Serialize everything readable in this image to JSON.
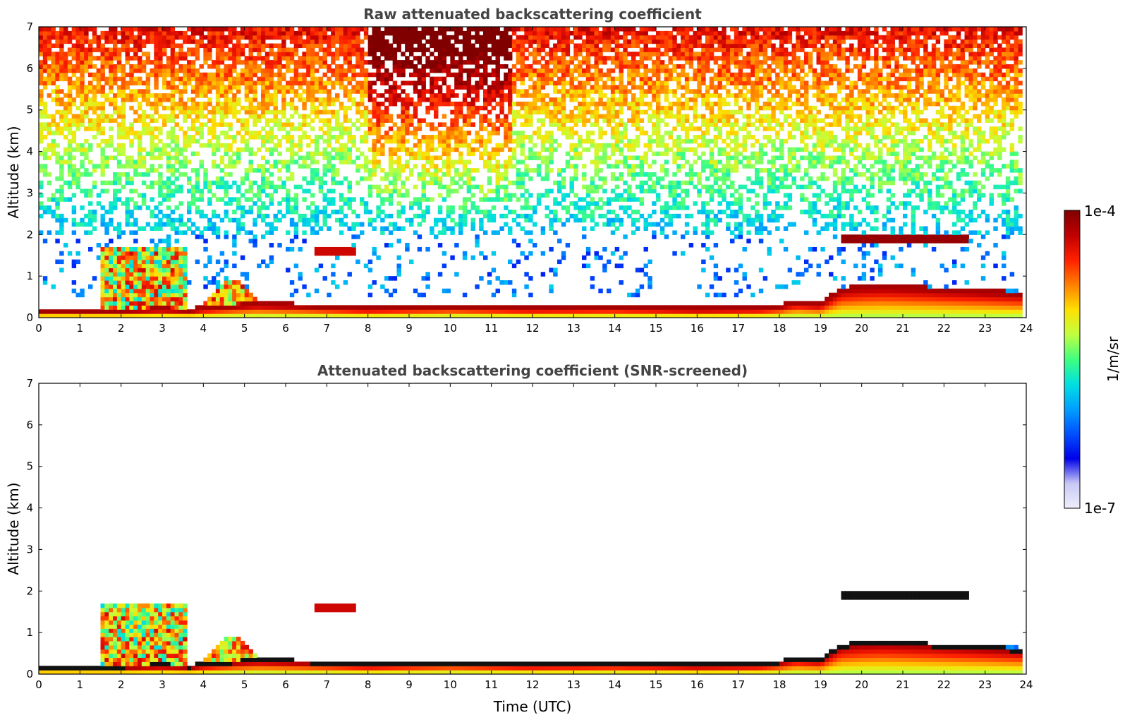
{
  "chart_data": [
    {
      "type": "heatmap",
      "title": "Raw attenuated backscattering coefficient",
      "xlabel": "",
      "ylabel": "Altitude (km)",
      "xlim": [
        0,
        24
      ],
      "ylim": [
        0,
        7
      ],
      "xticks": [
        "0",
        "1",
        "2",
        "3",
        "4",
        "5",
        "6",
        "7",
        "8",
        "9",
        "10",
        "11",
        "12",
        "13",
        "14",
        "15",
        "16",
        "17",
        "18",
        "19",
        "20",
        "21",
        "22",
        "23",
        "24"
      ],
      "yticks": [
        "0",
        "1",
        "2",
        "3",
        "4",
        "5",
        "6",
        "7"
      ],
      "screened": false,
      "features": [
        {
          "name": "boundary-layer top",
          "time_h": [
            0,
            1,
            2,
            3,
            3.7,
            4,
            5,
            5.3,
            6,
            8,
            10,
            12,
            14,
            16,
            17.5,
            18,
            18.4,
            19,
            19.5,
            20,
            20.5,
            21,
            22,
            23,
            23.8
          ],
          "alt_km": [
            0.15,
            0.15,
            0.15,
            0.18,
            0.15,
            0.2,
            0.28,
            0.3,
            0.28,
            0.2,
            0.25,
            0.2,
            0.22,
            0.18,
            0.2,
            0.25,
            0.35,
            0.3,
            0.65,
            0.7,
            0.72,
            0.7,
            0.65,
            0.6,
            0.55
          ]
        },
        {
          "name": "elevated cloud layer",
          "time_h": [
            19.5,
            22.5
          ],
          "alt_km": 1.9
        }
      ]
    },
    {
      "type": "heatmap",
      "title": "Attenuated backscattering coefficient (SNR-screened)",
      "xlabel": "Time (UTC)",
      "ylabel": "Altitude (km)",
      "xlim": [
        0,
        24
      ],
      "ylim": [
        0,
        7
      ],
      "xticks": [
        "0",
        "1",
        "2",
        "3",
        "4",
        "5",
        "6",
        "7",
        "8",
        "9",
        "10",
        "11",
        "12",
        "13",
        "14",
        "15",
        "16",
        "17",
        "18",
        "19",
        "20",
        "21",
        "22",
        "23",
        "24"
      ],
      "yticks": [
        "0",
        "1",
        "2",
        "3",
        "4",
        "5",
        "6",
        "7"
      ],
      "screened": true
    }
  ],
  "colorbar": {
    "label": "1/m/sr",
    "max_label": "1e-4",
    "min_label": "1e-7",
    "scale": "log",
    "range": [
      1e-07,
      0.0001
    ],
    "colormap": [
      "#eeeefc",
      "#c8c8f6",
      "#0000e8",
      "#0050ff",
      "#00a0ff",
      "#00e0e0",
      "#40ff80",
      "#c0ff40",
      "#ffe000",
      "#ff8000",
      "#ff2000",
      "#c00000",
      "#800000"
    ]
  }
}
